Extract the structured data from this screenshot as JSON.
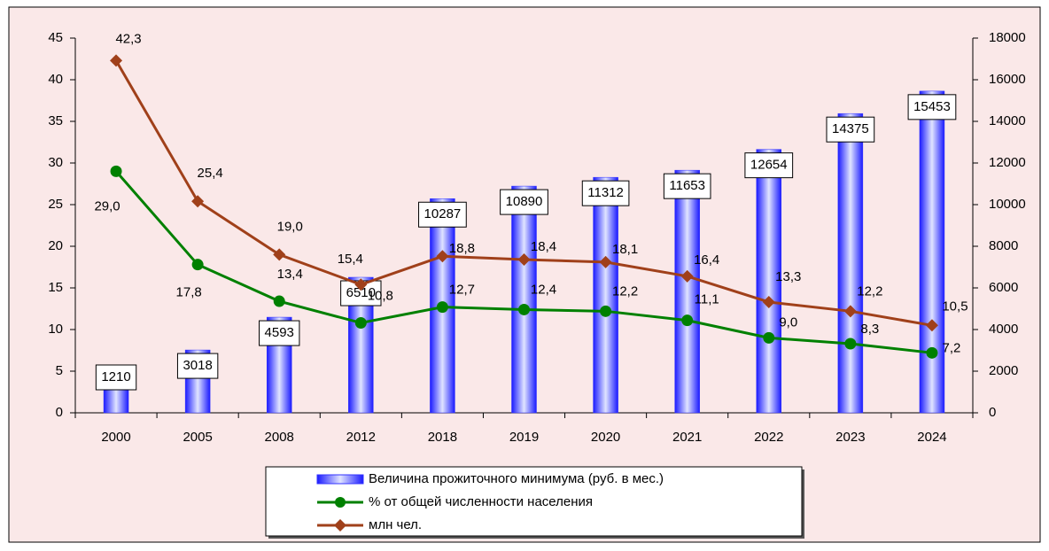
{
  "chart_data": {
    "type": "combo",
    "categories": [
      "2000",
      "2005",
      "2008",
      "2012",
      "2018",
      "2019",
      "2020",
      "2021",
      "2022",
      "2023",
      "2024"
    ],
    "ylim": [
      0,
      45
    ],
    "yticks": [
      0,
      5,
      10,
      15,
      20,
      25,
      30,
      35,
      40,
      45
    ],
    "y2lim": [
      0,
      18000
    ],
    "y2ticks": [
      0,
      2000,
      4000,
      6000,
      8000,
      10000,
      12000,
      14000,
      16000,
      18000
    ],
    "series": [
      {
        "name": "Величина прожиточного минимума (руб. в мес.)",
        "type": "bar",
        "axis": "y2",
        "color": "#3333ff",
        "values": [
          1210,
          3018,
          4593,
          6510,
          10287,
          10890,
          11312,
          11653,
          12654,
          14375,
          15453
        ]
      },
      {
        "name": "% от общей численности населения",
        "type": "line",
        "color": "#008000",
        "values": [
          29.0,
          17.8,
          13.4,
          10.8,
          12.7,
          12.4,
          12.2,
          11.1,
          9.0,
          8.3,
          7.2
        ],
        "value_labels": [
          "29,0",
          "17,8",
          "13,4",
          "10,8",
          "12,7",
          "12,4",
          "12,2",
          "11,1",
          "9,0",
          "8,3",
          "7,2"
        ]
      },
      {
        "name": "млн чел.",
        "type": "line",
        "color": "#a0401a",
        "values": [
          42.3,
          25.4,
          19.0,
          15.4,
          18.8,
          18.4,
          18.1,
          16.4,
          13.3,
          12.2,
          10.5
        ],
        "value_labels": [
          "42,3",
          "25,4",
          "19,0",
          "15,4",
          "18,8",
          "18,4",
          "18,1",
          "16,4",
          "13,3",
          "12,2",
          "10,5"
        ]
      }
    ]
  }
}
